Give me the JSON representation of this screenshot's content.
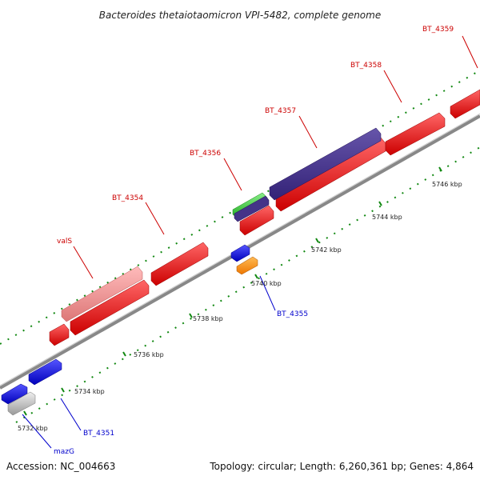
{
  "title": "Bacteroides thetaiotaomicron VPI-5482, complete genome",
  "footer": {
    "accession": "Accession: NC_004663",
    "summary": "Topology: circular; Length: 6,260,361 bp; Genes: 4,864"
  },
  "map": {
    "ticks": [
      "5732 kbp",
      "5734 kbp",
      "5736 kbp",
      "5738 kbp",
      "5740 kbp",
      "5742 kbp",
      "5744 kbp",
      "5746 kbp"
    ],
    "gene_labels": [
      {
        "text": "BT_4359",
        "strand": "forward"
      },
      {
        "text": "BT_4358",
        "strand": "forward"
      },
      {
        "text": "BT_4357",
        "strand": "forward"
      },
      {
        "text": "BT_4356",
        "strand": "forward"
      },
      {
        "text": "BT_4354",
        "strand": "forward"
      },
      {
        "text": "valS",
        "strand": "forward"
      },
      {
        "text": "BT_4355",
        "strand": "reverse"
      },
      {
        "text": "BT_4351",
        "strand": "reverse"
      },
      {
        "text": "mazG",
        "strand": "reverse"
      }
    ],
    "colors": {
      "forward_label": "#cc0000",
      "reverse_label": "#0000cc",
      "gene_red": "#ee1111",
      "gene_pink": "#ee8888",
      "gene_purple": "#443388",
      "gene_green": "#33cc33",
      "gene_blue": "#1111dd",
      "gene_orange": "#ff8800",
      "gene_gray": "#bbbbbb",
      "backbone": "#888888",
      "dots": "#118811"
    }
  }
}
